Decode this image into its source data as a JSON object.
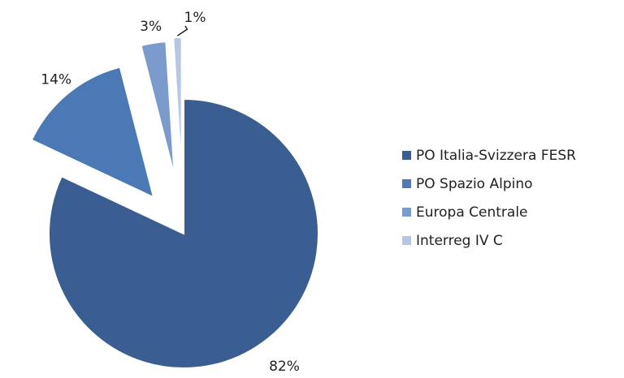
{
  "chart_data": {
    "type": "pie",
    "categories": [
      "PO Italia-Svizzera FESR",
      "PO Spazio Alpino",
      "Europa Centrale",
      "Interreg IV C"
    ],
    "values": [
      82,
      14,
      3,
      1
    ],
    "value_labels": [
      "82%",
      "14%",
      "3%",
      "1%"
    ],
    "colors": [
      "#3a5e92",
      "#4a79b6",
      "#7b9bcc",
      "#b6c7e5"
    ],
    "legend": "right"
  }
}
